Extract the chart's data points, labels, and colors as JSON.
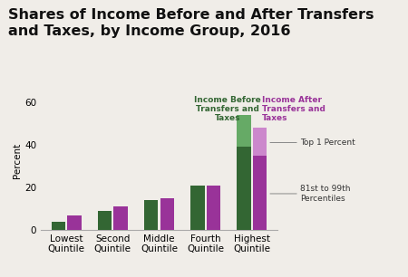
{
  "title": "Shares of Income Before and After Transfers\nand Taxes, by Income Group, 2016",
  "ylabel": "Percent",
  "categories": [
    "Lowest\nQuintile",
    "Second\nQuintile",
    "Middle\nQuintile",
    "Fourth\nQuintile",
    "Highest\nQuintile"
  ],
  "before_bottom": [
    4,
    9,
    14,
    21,
    39
  ],
  "before_top": [
    0,
    0,
    0,
    0,
    15
  ],
  "after_bottom": [
    7,
    11,
    15,
    21,
    35
  ],
  "after_top": [
    0,
    0,
    0,
    0,
    13
  ],
  "color_green_dark": "#336633",
  "color_green_light": "#66aa66",
  "color_purple_dark": "#993399",
  "color_purple_light": "#cc88cc",
  "ylim": [
    0,
    65
  ],
  "yticks": [
    0,
    20,
    40,
    60
  ],
  "title_fontsize": 11.5,
  "label_fontsize": 7.5,
  "tick_fontsize": 7.5,
  "annotation_before": "Income Before\nTransfers and\nTaxes",
  "annotation_after": "Income After\nTransfers and\nTaxes",
  "annotation_top1": "Top 1 Percent",
  "annotation_81to99": "81st to 99th\nPercentiles",
  "background_color": "#f0ede8"
}
